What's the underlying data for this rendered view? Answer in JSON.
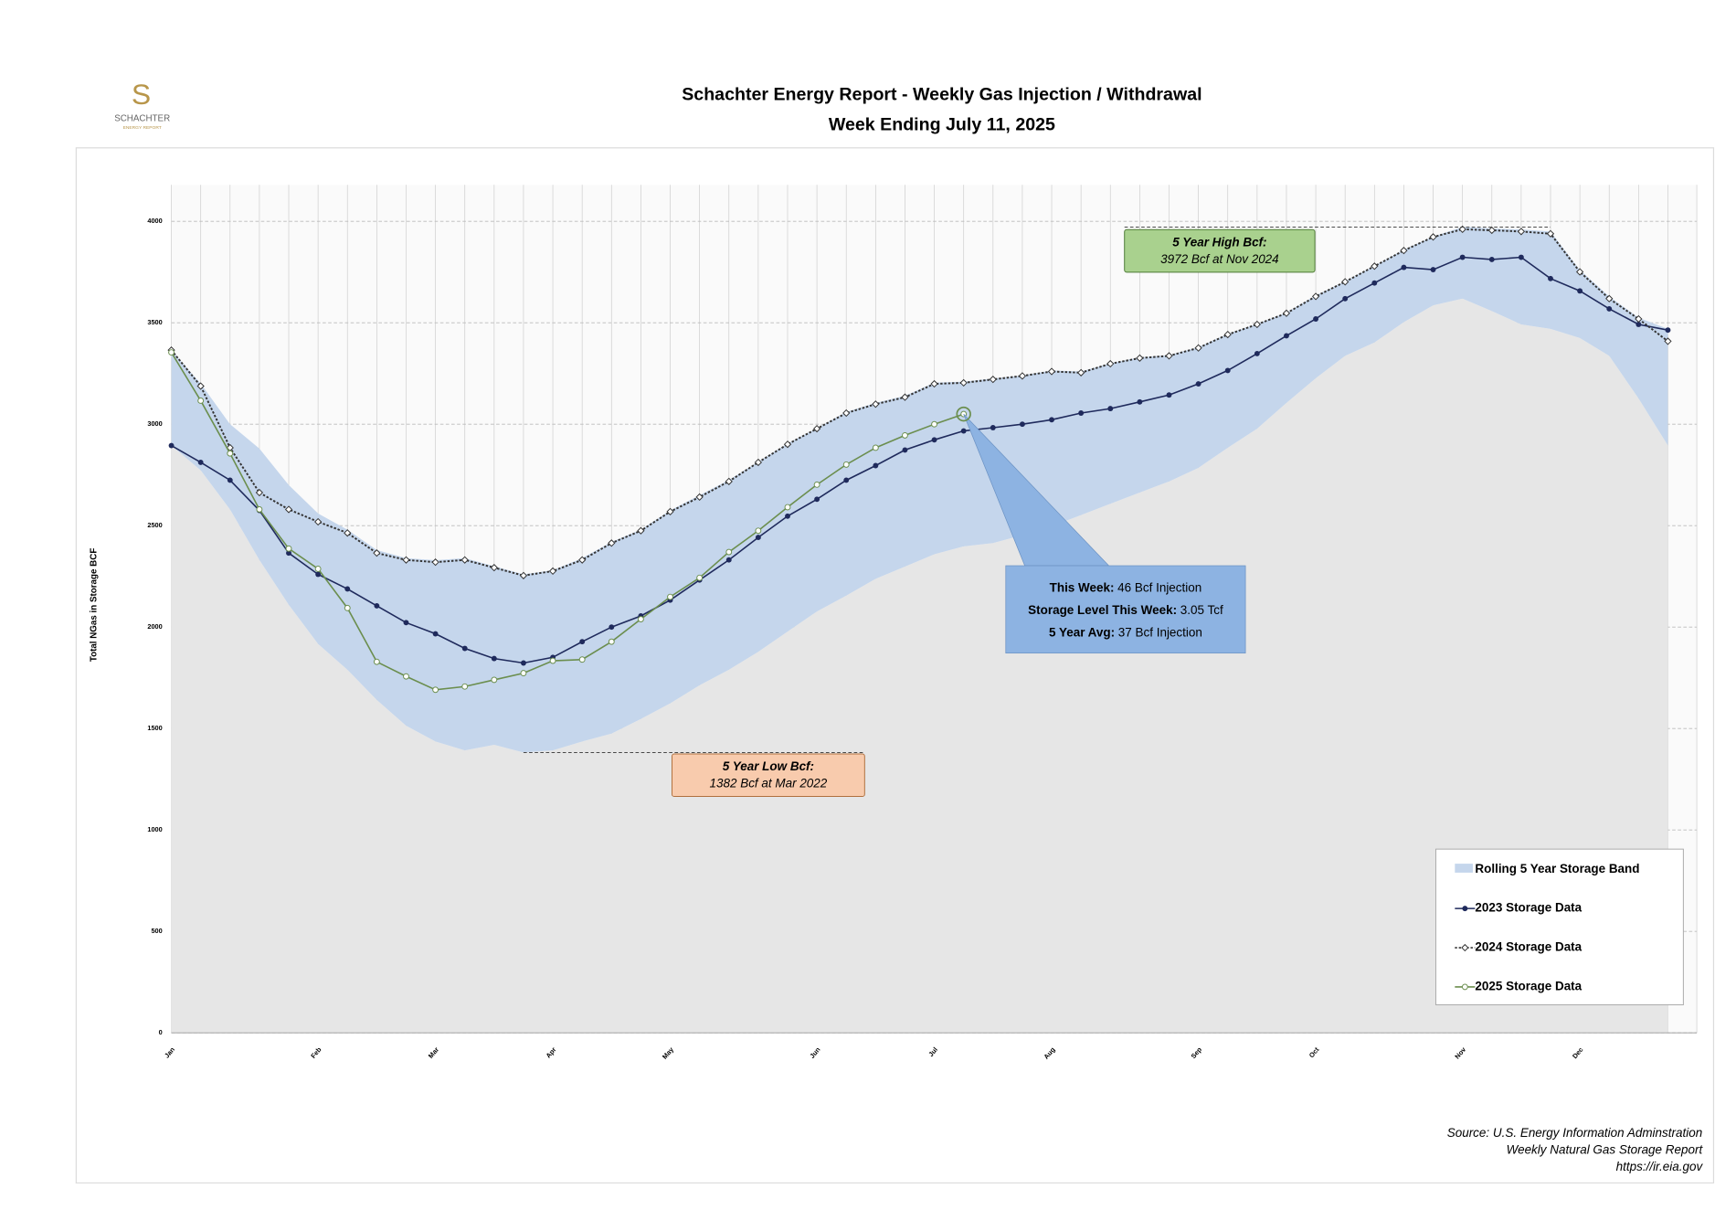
{
  "logo": {
    "mark": "S",
    "name": "SCHACHTER",
    "tagline": "ENERGY REPORT"
  },
  "chart_data": {
    "type": "line",
    "title": "Schachter Energy Report - Weekly Gas Injection / Withdrawal",
    "subtitle": "Week Ending July 11, 2025",
    "y_label": "Total NGas in Storage BCF",
    "categories": [
      "Jan",
      null,
      null,
      null,
      null,
      "Feb",
      null,
      null,
      null,
      "Mar",
      null,
      null,
      null,
      "Apr",
      null,
      null,
      null,
      "May",
      null,
      null,
      null,
      null,
      "Jun",
      null,
      null,
      null,
      "Jul",
      null,
      null,
      null,
      "Aug",
      null,
      null,
      null,
      null,
      "Sep",
      null,
      null,
      null,
      "Oct",
      null,
      null,
      null,
      null,
      "Nov",
      null,
      null,
      null,
      "Dec",
      null,
      null,
      null
    ],
    "ylim": [
      0,
      4180
    ],
    "yticks": [
      0,
      500,
      1000,
      1500,
      2000,
      2500,
      3000,
      3500,
      4000
    ],
    "grid": true,
    "floor_color": "#e6e6e6",
    "band": {
      "name": "Rolling 5 Year Storage Band",
      "color": "#c5d6ec",
      "upper": [
        3365,
        3200,
        3000,
        2880,
        2700,
        2560,
        2480,
        2380,
        2340,
        2330,
        2340,
        2300,
        2260,
        2280,
        2340,
        2420,
        2480,
        2575,
        2650,
        2725,
        2815,
        2905,
        2980,
        3060,
        3105,
        3140,
        3205,
        3210,
        3225,
        3240,
        3265,
        3260,
        3300,
        3330,
        3340,
        3380,
        3445,
        3495,
        3550,
        3635,
        3705,
        3780,
        3860,
        3925,
        3972,
        3965,
        3960,
        3950,
        3760,
        3630,
        3525,
        3470
      ],
      "lower": [
        2895,
        2773,
        2580,
        2331,
        2110,
        1917,
        1790,
        1641,
        1514,
        1436,
        1392,
        1420,
        1382,
        1392,
        1436,
        1475,
        1547,
        1624,
        1713,
        1790,
        1878,
        1978,
        2077,
        2155,
        2238,
        2298,
        2359,
        2398,
        2414,
        2453,
        2497,
        2552,
        2608,
        2663,
        2718,
        2785,
        2884,
        2978,
        3105,
        3227,
        3337,
        3403,
        3503,
        3586,
        3619,
        3558,
        3492,
        3470,
        3425,
        3337,
        3127,
        2895
      ]
    },
    "series": [
      {
        "name": "2023 Storage Data",
        "color": "#1f2a5c",
        "dash": false,
        "marker": "dot",
        "values": [
          2895,
          2812,
          2724,
          2575,
          2365,
          2260,
          2188,
          2105,
          2022,
          1967,
          1895,
          1845,
          1823,
          1851,
          1928,
          2000,
          2055,
          2133,
          2232,
          2331,
          2442,
          2547,
          2630,
          2724,
          2796,
          2873,
          2923,
          2967,
          2983,
          3000,
          3022,
          3055,
          3077,
          3110,
          3144,
          3199,
          3265,
          3348,
          3436,
          3519,
          3619,
          3696,
          3773,
          3762,
          3823,
          3812,
          3823,
          3718,
          3657,
          3569,
          3492,
          3464
        ]
      },
      {
        "name": "2024 Storage Data",
        "color": "#333333",
        "dash": true,
        "marker": "open-diamond",
        "values": [
          3365,
          3188,
          2884,
          2663,
          2580,
          2519,
          2464,
          2365,
          2331,
          2320,
          2331,
          2293,
          2254,
          2276,
          2331,
          2414,
          2475,
          2569,
          2641,
          2718,
          2812,
          2901,
          2978,
          3055,
          3099,
          3133,
          3199,
          3204,
          3221,
          3238,
          3260,
          3254,
          3298,
          3326,
          3337,
          3376,
          3442,
          3492,
          3547,
          3630,
          3702,
          3779,
          3856,
          3923,
          3961,
          3956,
          3950,
          3939,
          3751,
          3619,
          3519,
          3409
        ]
      },
      {
        "name": "2025 Storage Data",
        "color": "#6b8e4e",
        "dash": false,
        "marker": "open-circle",
        "values": [
          3354,
          3116,
          2856,
          2580,
          2387,
          2287,
          2094,
          1829,
          1757,
          1691,
          1707,
          1740,
          1773,
          1834,
          1840,
          1928,
          2039,
          2149,
          2243,
          2370,
          2475,
          2591,
          2702,
          2801,
          2884,
          2945,
          3000,
          3050,
          null,
          null,
          null,
          null,
          null,
          null,
          null,
          null,
          null,
          null,
          null,
          null,
          null,
          null,
          null,
          null,
          null,
          null,
          null,
          null,
          null,
          null,
          null,
          null
        ]
      }
    ],
    "legend": "lower right",
    "annotations": {
      "high": {
        "title": "5 Year High Bcf:",
        "text": "3972 Bcf at Nov 2024",
        "color": "#a9d18e"
      },
      "low": {
        "title": "5 Year Low Bcf:",
        "text": "1382 Bcf at Mar 2022",
        "color": "#f8cbad"
      },
      "this_week": {
        "color": "#8db3e2",
        "rows": [
          [
            "This Week:",
            "46 Bcf Injection"
          ],
          [
            "Storage Level This Week:",
            "3.05 Tcf"
          ],
          [
            "5 Year Avg:",
            "37 Bcf Injection"
          ]
        ]
      }
    },
    "source": [
      "Source: U.S. Energy Information Adminstration",
      "Weekly Natural Gas Storage Report",
      "https://ir.eia.gov"
    ]
  }
}
